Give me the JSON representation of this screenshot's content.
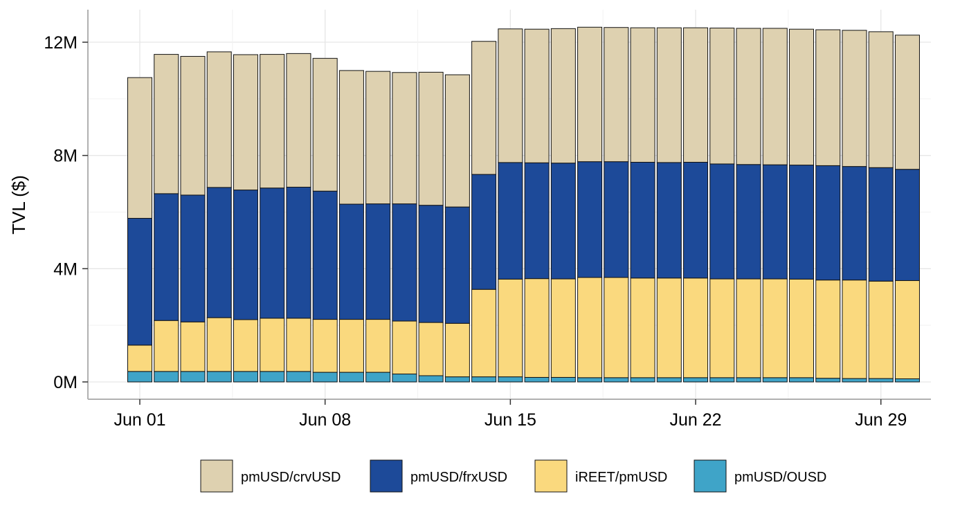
{
  "chart_data": {
    "type": "bar",
    "stacked": true,
    "title": "",
    "xlabel": "",
    "ylabel": "TVL ($)",
    "ylim": [
      0,
      12800000
    ],
    "y_ticks": [
      0,
      4000000,
      8000000,
      12000000
    ],
    "y_tick_labels": [
      "0M",
      "4M",
      "8M",
      "12M"
    ],
    "x_ticks": [
      "2025-06-01",
      "2025-06-08",
      "2025-06-15",
      "2025-06-22",
      "2025-06-29"
    ],
    "x_tick_labels": [
      "Jun 01",
      "Jun 08",
      "Jun 15",
      "Jun 22",
      "Jun 29"
    ],
    "grid": true,
    "legend_position": "bottom",
    "categories": [
      "2025-06-01",
      "2025-06-02",
      "2025-06-03",
      "2025-06-04",
      "2025-06-05",
      "2025-06-06",
      "2025-06-07",
      "2025-06-08",
      "2025-06-09",
      "2025-06-10",
      "2025-06-11",
      "2025-06-12",
      "2025-06-13",
      "2025-06-14",
      "2025-06-15",
      "2025-06-16",
      "2025-06-17",
      "2025-06-18",
      "2025-06-19",
      "2025-06-20",
      "2025-06-21",
      "2025-06-22",
      "2025-06-23",
      "2025-06-24",
      "2025-06-25",
      "2025-06-26",
      "2025-06-27",
      "2025-06-28",
      "2025-06-29",
      "2025-06-30"
    ],
    "series": [
      {
        "name": "pmUSD/OUSD",
        "color": "#3fa4c8",
        "values": [
          370000,
          370000,
          370000,
          370000,
          370000,
          370000,
          370000,
          340000,
          340000,
          340000,
          280000,
          220000,
          180000,
          180000,
          180000,
          160000,
          160000,
          150000,
          150000,
          150000,
          150000,
          150000,
          150000,
          150000,
          150000,
          150000,
          130000,
          120000,
          120000,
          110000
        ]
      },
      {
        "name": "iREET/pmUSD",
        "color": "#fad97e",
        "values": [
          930000,
          1800000,
          1750000,
          1900000,
          1830000,
          1880000,
          1880000,
          1870000,
          1870000,
          1870000,
          1870000,
          1880000,
          1890000,
          3090000,
          3450000,
          3490000,
          3480000,
          3540000,
          3540000,
          3520000,
          3520000,
          3520000,
          3490000,
          3490000,
          3490000,
          3480000,
          3470000,
          3480000,
          3440000,
          3470000
        ]
      },
      {
        "name": "pmUSD/frxUSD",
        "color": "#1d4a99",
        "values": [
          4480000,
          4480000,
          4480000,
          4600000,
          4580000,
          4600000,
          4630000,
          4530000,
          4070000,
          4080000,
          4140000,
          4140000,
          4110000,
          4060000,
          4120000,
          4090000,
          4090000,
          4090000,
          4090000,
          4090000,
          4080000,
          4090000,
          4060000,
          4040000,
          4030000,
          4030000,
          4040000,
          4010000,
          4010000,
          3930000
        ]
      },
      {
        "name": "pmUSD/crvUSD",
        "color": "#ded1b0",
        "values": [
          4970000,
          4920000,
          4900000,
          4790000,
          4780000,
          4720000,
          4720000,
          4690000,
          4720000,
          4680000,
          4640000,
          4700000,
          4670000,
          4700000,
          4720000,
          4720000,
          4750000,
          4750000,
          4740000,
          4750000,
          4760000,
          4750000,
          4800000,
          4810000,
          4820000,
          4800000,
          4800000,
          4810000,
          4800000,
          4740000
        ]
      }
    ],
    "legend_order": [
      "pmUSD/crvUSD",
      "pmUSD/frxUSD",
      "iREET/pmUSD",
      "pmUSD/OUSD"
    ]
  }
}
